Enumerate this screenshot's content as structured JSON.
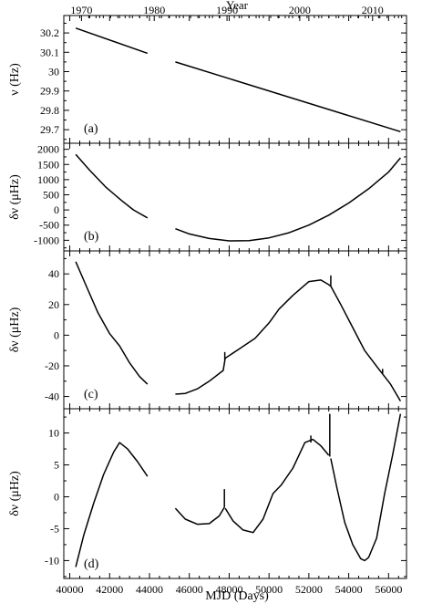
{
  "figure": {
    "top_axis_label": "Year",
    "top_ticks": [
      {
        "label": "1970",
        "mjd": 40587
      },
      {
        "label": "1980",
        "mjd": 44239
      },
      {
        "label": "1990",
        "mjd": 47892
      },
      {
        "label": "2000",
        "mjd": 51544
      },
      {
        "label": "2010",
        "mjd": 55197
      }
    ],
    "xlabel": "MJD  (Days)",
    "xlim": [
      39700,
      56900
    ],
    "x_ticks": [
      40000,
      42000,
      44000,
      46000,
      48000,
      50000,
      52000,
      54000,
      56000
    ],
    "line_color": "#000000"
  },
  "chart_data": [
    {
      "panel": "(a)",
      "type": "line",
      "ylabel": "ν  (Hz)",
      "ylim": [
        29.63,
        30.29
      ],
      "y_ticks": [
        29.7,
        29.8,
        29.9,
        30,
        30.1,
        30.2
      ],
      "y_tick_labels": [
        "29.7",
        "29.8",
        "29.9",
        "30",
        "30.1",
        "30.2"
      ],
      "series": [
        {
          "x": [
            40300,
            43900
          ],
          "y": [
            30.225,
            30.095
          ]
        },
        {
          "x": [
            45300,
            56600
          ],
          "y": [
            30.05,
            29.69
          ]
        }
      ]
    },
    {
      "panel": "(b)",
      "type": "line",
      "ylabel": "δν  (μHz)",
      "ylim": [
        -1350,
        2200
      ],
      "y_ticks": [
        -1000,
        -500,
        0,
        500,
        1000,
        1500,
        2000
      ],
      "y_tick_labels": [
        "-1000",
        "-500",
        "0",
        "500",
        "1000",
        "1500",
        "2000"
      ],
      "series": [
        {
          "x": [
            40300,
            41000,
            41800,
            42600,
            43200,
            43900
          ],
          "y": [
            1830,
            1310,
            760,
            310,
            0,
            -260
          ]
        },
        {
          "x": [
            45300,
            46000,
            47000,
            48000,
            49000,
            50000,
            51000,
            52000,
            53000,
            54000,
            55000,
            56000,
            56600
          ],
          "y": [
            -620,
            -790,
            -940,
            -1020,
            -1010,
            -920,
            -750,
            -500,
            -170,
            230,
            700,
            1250,
            1720
          ]
        }
      ]
    },
    {
      "panel": "(c)",
      "type": "line",
      "ylabel": "δν  (μHz)",
      "ylim": [
        -48,
        55
      ],
      "y_ticks": [
        -40,
        -20,
        0,
        20,
        40
      ],
      "y_tick_labels": [
        "-40",
        "-20",
        "0",
        "20",
        "40"
      ],
      "series": [
        {
          "x": [
            40300,
            40800,
            41400,
            42000,
            42500,
            43000,
            43500,
            43900
          ],
          "y": [
            48,
            33,
            15,
            1,
            -7,
            -18,
            -27,
            -32
          ]
        },
        {
          "x": [
            45300,
            45800,
            46400,
            47000,
            47700,
            47800,
            48500,
            49300,
            50000,
            50500,
            51200,
            52000,
            52600,
            53000,
            53100,
            53600,
            54200,
            54800,
            55500,
            56100,
            56600
          ],
          "y": [
            -38.5,
            -38,
            -35,
            -30,
            -23,
            -15,
            -9,
            -2,
            8,
            17,
            26,
            35,
            36,
            33,
            32,
            20,
            5,
            -10,
            -22,
            -32,
            -43
          ]
        }
      ],
      "spikes": [
        {
          "x": 47780,
          "y1": -16,
          "y2": -11
        },
        {
          "x": 53100,
          "y1": 32,
          "y2": 39
        },
        {
          "x": 55700,
          "y1": -25,
          "y2": -22
        }
      ]
    },
    {
      "panel": "(d)",
      "type": "line",
      "ylabel": "δν  (μHz)",
      "ylim": [
        -12.8,
        13.8
      ],
      "y_ticks": [
        -10,
        -5,
        0,
        5,
        10
      ],
      "y_tick_labels": [
        "-10",
        "-5",
        "0",
        "5",
        "10"
      ],
      "series": [
        {
          "x": [
            40300,
            40700,
            41200,
            41700,
            42200,
            42500,
            42900,
            43400,
            43900
          ],
          "y": [
            -11,
            -6,
            -1,
            3.5,
            7,
            8.5,
            7.5,
            5.5,
            3.2
          ]
        },
        {
          "x": [
            45300,
            45800,
            46400,
            47000,
            47500,
            47750
          ],
          "y": [
            -1.8,
            -3.5,
            -4.3,
            -4.2,
            -3,
            -1.7
          ]
        },
        {
          "x": [
            47800,
            48200,
            48700,
            49200,
            49700,
            50200,
            50600,
            51200,
            51800,
            52200,
            52600,
            53000
          ],
          "y": [
            -1.8,
            -3.8,
            -5.2,
            -5.6,
            -3.5,
            0.5,
            1.8,
            4.5,
            8.5,
            9,
            8,
            6.5
          ]
        },
        {
          "x": [
            53100,
            53400,
            53800,
            54200,
            54600,
            54800,
            55000,
            55400,
            55800,
            56200,
            56600
          ],
          "y": [
            6,
            1.5,
            -4,
            -7.5,
            -9.7,
            -10,
            -9.5,
            -6.5,
            0.5,
            6.5,
            13
          ]
        }
      ],
      "spikes": [
        {
          "x": 47760,
          "y1": -1.7,
          "y2": 1.2
        },
        {
          "x": 52100,
          "y1": 8.5,
          "y2": 9.6
        },
        {
          "x": 53050,
          "y1": 6.3,
          "y2": 13
        }
      ]
    }
  ]
}
